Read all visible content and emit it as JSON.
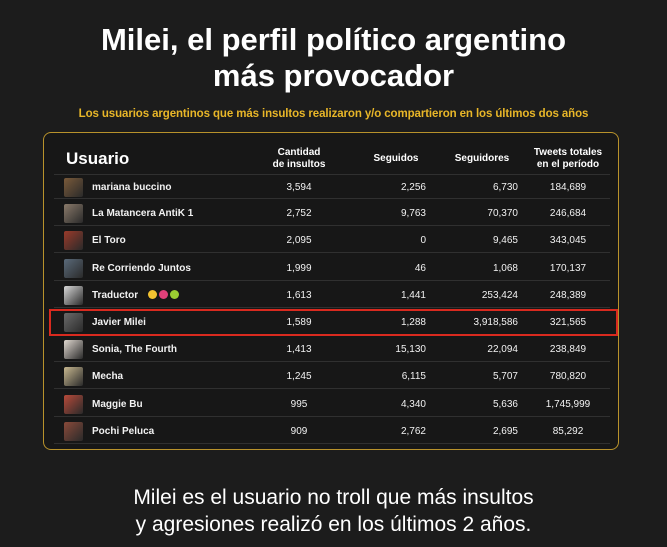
{
  "title_line1": "Milei, el perfil político argentino",
  "title_line2": "más provocador",
  "subtitle": "Los usuarios argentinos que más insultos realizaron y/o compartieron en los últimos dos años",
  "columns": {
    "usuario": "Usuario",
    "cantidad_line1": "Cantidad",
    "cantidad_line2": "de insultos",
    "seguidos": "Seguidos",
    "seguidores": "Seguidores",
    "tweets_line1": "Tweets totales",
    "tweets_line2": "en el período"
  },
  "rows": [
    {
      "name": "mariana buccino",
      "insultos": "3,594",
      "seguidos": "2,256",
      "seguidores": "6,730",
      "tweets": "184,689",
      "avatar_color": "#7a5a3a"
    },
    {
      "name": "La Matancera AntiK 1",
      "insultos": "2,752",
      "seguidos": "9,763",
      "seguidores": "70,370",
      "tweets": "246,684",
      "avatar_color": "#8a7a6a"
    },
    {
      "name": "El Toro",
      "insultos": "2,095",
      "seguidos": "0",
      "seguidores": "9,465",
      "tweets": "343,045",
      "avatar_color": "#9a3a2a"
    },
    {
      "name": "Re Corriendo Juntos",
      "insultos": "1,999",
      "seguidos": "46",
      "seguidores": "1,068",
      "tweets": "170,137",
      "avatar_color": "#5a6a7a"
    },
    {
      "name": "Traductor",
      "insultos": "1,613",
      "seguidos": "1,441",
      "seguidores": "253,424",
      "tweets": "248,389",
      "avatar_color": "#d8d8d8"
    },
    {
      "name": "Javier Milei",
      "insultos": "1,589",
      "seguidos": "1,288",
      "seguidores": "3,918,586",
      "tweets": "321,565",
      "avatar_color": "#6a6a6a"
    },
    {
      "name": "Sonia, The Fourth",
      "insultos": "1,413",
      "seguidos": "15,130",
      "seguidores": "22,094",
      "tweets": "238,849",
      "avatar_color": "#e0d8d0"
    },
    {
      "name": "Mecha",
      "insultos": "1,245",
      "seguidos": "6,115",
      "seguidores": "5,707",
      "tweets": "780,820",
      "avatar_color": "#c8b890"
    },
    {
      "name": "Maggie Bu",
      "insultos": "995",
      "seguidos": "4,340",
      "seguidores": "5,636",
      "tweets": "1,745,999",
      "avatar_color": "#b84a3a"
    },
    {
      "name": "Pochi Peluca",
      "insultos": "909",
      "seguidos": "2,762",
      "seguidores": "2,695",
      "tweets": "85,292",
      "avatar_color": "#8a4a3a"
    }
  ],
  "highlighted_row": "Javier Milei",
  "highlight_color": "#d92a1f",
  "accent_color": "#e8b628",
  "footer_line1": "Milei es el usuario no troll que más insultos",
  "footer_line2": "y agresiones realizó en los últimos 2 años."
}
